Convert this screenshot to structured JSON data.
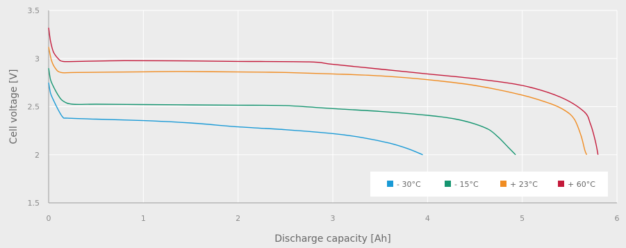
{
  "chart_data": {
    "type": "line",
    "title": "",
    "xlabel": "Discharge capacity [Ah]",
    "ylabel": "Cell voltage [V]",
    "xlim": [
      0,
      6
    ],
    "ylim": [
      1.5,
      3.5
    ],
    "xticks": [
      "0",
      "1",
      "2",
      "3",
      "4",
      "5",
      "6"
    ],
    "yticks": [
      "1.5",
      "2",
      "2.5",
      "3",
      "3.5"
    ],
    "grid": true,
    "legend_position": "bottom-right",
    "series": [
      {
        "name": "- 30°C",
        "color": "#1a9ad6",
        "points": [
          [
            0.0,
            2.75
          ],
          [
            0.02,
            2.64
          ],
          [
            0.05,
            2.57
          ],
          [
            0.1,
            2.47
          ],
          [
            0.15,
            2.39
          ],
          [
            0.2,
            2.38
          ],
          [
            0.5,
            2.37
          ],
          [
            1.0,
            2.355
          ],
          [
            1.5,
            2.33
          ],
          [
            2.0,
            2.29
          ],
          [
            2.5,
            2.26
          ],
          [
            3.0,
            2.22
          ],
          [
            3.3,
            2.18
          ],
          [
            3.6,
            2.12
          ],
          [
            3.8,
            2.06
          ],
          [
            3.95,
            2.0
          ]
        ]
      },
      {
        "name": "- 15°C",
        "color": "#159570",
        "points": [
          [
            0.0,
            2.9
          ],
          [
            0.02,
            2.78
          ],
          [
            0.05,
            2.71
          ],
          [
            0.1,
            2.62
          ],
          [
            0.15,
            2.56
          ],
          [
            0.25,
            2.525
          ],
          [
            0.5,
            2.525
          ],
          [
            1.0,
            2.522
          ],
          [
            1.5,
            2.518
          ],
          [
            2.0,
            2.515
          ],
          [
            2.5,
            2.51
          ],
          [
            3.0,
            2.48
          ],
          [
            3.5,
            2.45
          ],
          [
            4.0,
            2.41
          ],
          [
            4.3,
            2.37
          ],
          [
            4.5,
            2.32
          ],
          [
            4.65,
            2.26
          ],
          [
            4.75,
            2.18
          ],
          [
            4.85,
            2.08
          ],
          [
            4.93,
            2.0
          ]
        ]
      },
      {
        "name": "+ 23°C",
        "color": "#f08c22",
        "points": [
          [
            0.0,
            3.12
          ],
          [
            0.03,
            2.98
          ],
          [
            0.07,
            2.9
          ],
          [
            0.13,
            2.855
          ],
          [
            0.3,
            2.855
          ],
          [
            1.0,
            2.862
          ],
          [
            1.4,
            2.865
          ],
          [
            2.0,
            2.86
          ],
          [
            2.5,
            2.855
          ],
          [
            3.0,
            2.84
          ],
          [
            3.5,
            2.82
          ],
          [
            4.0,
            2.78
          ],
          [
            4.5,
            2.72
          ],
          [
            5.0,
            2.62
          ],
          [
            5.3,
            2.53
          ],
          [
            5.45,
            2.46
          ],
          [
            5.55,
            2.37
          ],
          [
            5.62,
            2.2
          ],
          [
            5.66,
            2.05
          ],
          [
            5.68,
            2.0
          ]
        ]
      },
      {
        "name": "+ 60°C",
        "color": "#c41a3b",
        "points": [
          [
            0.0,
            3.32
          ],
          [
            0.02,
            3.18
          ],
          [
            0.05,
            3.07
          ],
          [
            0.1,
            3.0
          ],
          [
            0.15,
            2.97
          ],
          [
            0.3,
            2.97
          ],
          [
            0.8,
            2.978
          ],
          [
            1.5,
            2.975
          ],
          [
            2.0,
            2.97
          ],
          [
            2.75,
            2.965
          ],
          [
            3.0,
            2.94
          ],
          [
            3.5,
            2.89
          ],
          [
            4.0,
            2.84
          ],
          [
            4.5,
            2.79
          ],
          [
            5.0,
            2.72
          ],
          [
            5.4,
            2.6
          ],
          [
            5.65,
            2.45
          ],
          [
            5.72,
            2.32
          ],
          [
            5.77,
            2.15
          ],
          [
            5.8,
            2.0
          ]
        ]
      }
    ]
  }
}
